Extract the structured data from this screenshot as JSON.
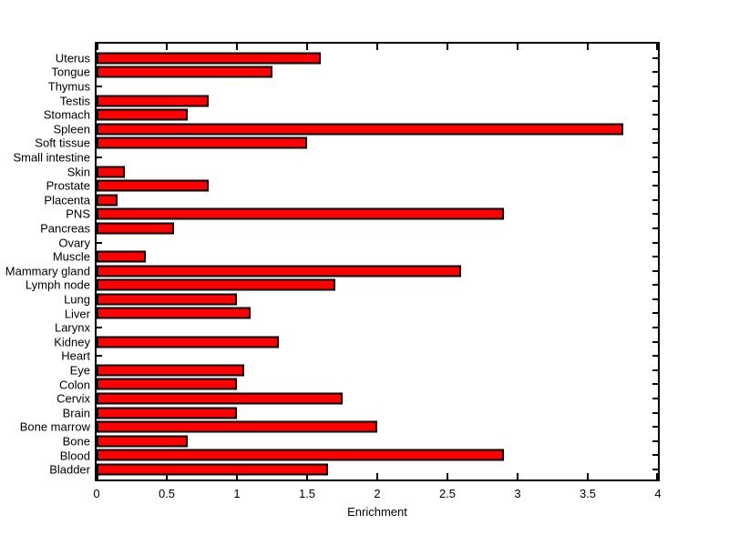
{
  "figure": {
    "background_color": "#FFFFFF",
    "plot_background_color": "#FFFFFF",
    "axis_color": "#000000"
  },
  "chart_data": {
    "type": "bar",
    "orientation": "horizontal",
    "title": "",
    "xlabel": "Enrichment",
    "ylabel": "",
    "xlim": [
      0,
      4
    ],
    "xtick_values": [
      0,
      0.5,
      1,
      1.5,
      2,
      2.5,
      3,
      3.5,
      4
    ],
    "xtick_labels": [
      "0",
      "0.5",
      "1",
      "1.5",
      "2",
      "2.5",
      "3",
      "3.5",
      "4"
    ],
    "grid": false,
    "legend": null,
    "bar_color": "#FF0000",
    "bar_edge_color": "#000000",
    "category_order": "top-to-bottom",
    "categories": [
      "Uterus",
      "Tongue",
      "Thymus",
      "Testis",
      "Stomach",
      "Spleen",
      "Soft tissue",
      "Small intestine",
      "Skin",
      "Prostate",
      "Placenta",
      "PNS",
      "Pancreas",
      "Ovary",
      "Muscle",
      "Mammary gland",
      "Lymph node",
      "Lung",
      "Liver",
      "Larynx",
      "Kidney",
      "Heart",
      "Eye",
      "Colon",
      "Cervix",
      "Brain",
      "Bone marrow",
      "Bone",
      "Blood",
      "Bladder"
    ],
    "values": [
      1.6,
      1.25,
      0,
      0.8,
      0.65,
      3.75,
      1.5,
      0,
      0.2,
      0.8,
      0.15,
      2.9,
      0.55,
      0,
      0.35,
      2.6,
      1.7,
      1.0,
      1.1,
      0,
      1.3,
      0,
      1.05,
      1.0,
      1.75,
      1.0,
      2.0,
      0.65,
      2.9,
      1.65
    ]
  }
}
